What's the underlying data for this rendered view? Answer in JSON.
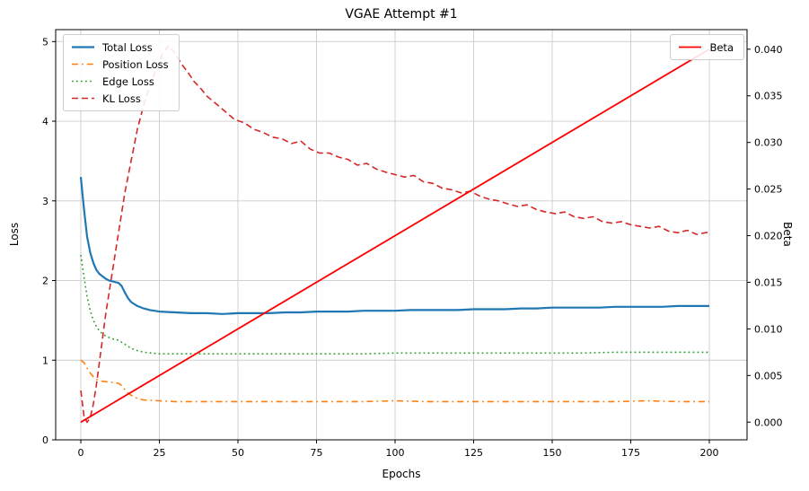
{
  "figure": {
    "title": "VGAE Attempt #1",
    "xlabel": "Epochs",
    "ylabel_left": "Loss",
    "ylabel_right": "Beta"
  },
  "chart_data": {
    "type": "line",
    "title": "VGAE Attempt #1",
    "xlabel": "Epochs",
    "ylabel": "Loss",
    "ylabel_right": "Beta",
    "grid": true,
    "xlim": [
      -8,
      212
    ],
    "ylim_left": [
      0,
      5.15
    ],
    "ylim_right": [
      -0.0019,
      0.0421
    ],
    "xticks": [
      0,
      25,
      50,
      75,
      100,
      125,
      150,
      175,
      200
    ],
    "yticks_left": [
      "0",
      "1",
      "2",
      "3",
      "4",
      "5"
    ],
    "yticks_right": [
      "0.000",
      "0.005",
      "0.010",
      "0.015",
      "0.020",
      "0.025",
      "0.030",
      "0.035",
      "0.040"
    ],
    "legends": [
      {
        "position": "top-left",
        "entries": [
          "Total Loss",
          "Position Loss",
          "Edge Loss",
          "KL Loss"
        ]
      },
      {
        "position": "top-right",
        "entries": [
          "Beta"
        ]
      }
    ],
    "series": [
      {
        "name": "Total Loss",
        "color": "#1f77b4",
        "style": "solid",
        "width": 2.2,
        "axis": "left",
        "x": [
          0,
          1,
          2,
          3,
          4,
          5,
          6,
          7,
          8,
          9,
          10,
          11,
          12,
          13,
          14,
          15,
          16,
          18,
          20,
          22,
          25,
          30,
          35,
          40,
          45,
          50,
          55,
          60,
          65,
          70,
          75,
          80,
          85,
          90,
          95,
          100,
          105,
          110,
          115,
          120,
          125,
          130,
          135,
          140,
          145,
          150,
          155,
          160,
          165,
          170,
          175,
          180,
          185,
          190,
          195,
          200
        ],
        "y": [
          3.3,
          2.9,
          2.55,
          2.35,
          2.22,
          2.13,
          2.08,
          2.05,
          2.02,
          2.0,
          1.99,
          1.98,
          1.97,
          1.93,
          1.85,
          1.78,
          1.73,
          1.68,
          1.65,
          1.63,
          1.61,
          1.6,
          1.59,
          1.59,
          1.58,
          1.59,
          1.59,
          1.59,
          1.6,
          1.6,
          1.61,
          1.61,
          1.61,
          1.62,
          1.62,
          1.62,
          1.63,
          1.63,
          1.63,
          1.63,
          1.64,
          1.64,
          1.64,
          1.65,
          1.65,
          1.66,
          1.66,
          1.66,
          1.66,
          1.67,
          1.67,
          1.67,
          1.67,
          1.68,
          1.68,
          1.68
        ]
      },
      {
        "name": "Position Loss",
        "color": "#ff7f0e",
        "style": "dashdot",
        "width": 1.6,
        "axis": "left",
        "x": [
          0,
          1,
          2,
          3,
          4,
          5,
          6,
          8,
          10,
          12,
          13,
          14,
          15,
          16,
          18,
          20,
          25,
          30,
          40,
          50,
          60,
          70,
          80,
          90,
          100,
          110,
          120,
          130,
          140,
          150,
          160,
          170,
          180,
          190,
          200
        ],
        "y": [
          1.0,
          0.97,
          0.9,
          0.84,
          0.79,
          0.76,
          0.74,
          0.73,
          0.72,
          0.71,
          0.68,
          0.63,
          0.59,
          0.56,
          0.52,
          0.5,
          0.49,
          0.48,
          0.48,
          0.48,
          0.48,
          0.48,
          0.48,
          0.48,
          0.49,
          0.48,
          0.48,
          0.48,
          0.48,
          0.48,
          0.48,
          0.48,
          0.49,
          0.48,
          0.48
        ]
      },
      {
        "name": "Edge Loss",
        "color": "#2ca02c",
        "style": "dotted",
        "width": 1.6,
        "axis": "left",
        "x": [
          0,
          1,
          2,
          3,
          4,
          5,
          6,
          8,
          10,
          12,
          14,
          16,
          18,
          20,
          25,
          30,
          40,
          50,
          60,
          70,
          80,
          90,
          100,
          110,
          120,
          130,
          140,
          150,
          160,
          170,
          180,
          190,
          200
        ],
        "y": [
          2.32,
          2.05,
          1.8,
          1.62,
          1.5,
          1.42,
          1.36,
          1.3,
          1.27,
          1.25,
          1.2,
          1.15,
          1.12,
          1.1,
          1.08,
          1.08,
          1.08,
          1.08,
          1.08,
          1.08,
          1.08,
          1.08,
          1.09,
          1.09,
          1.09,
          1.09,
          1.09,
          1.09,
          1.09,
          1.1,
          1.1,
          1.1,
          1.1
        ]
      },
      {
        "name": "KL Loss",
        "color": "#d62728",
        "style": "dashed",
        "width": 1.6,
        "axis": "left",
        "x": [
          0,
          1,
          2,
          3,
          4,
          5,
          6,
          7,
          8,
          10,
          12,
          14,
          16,
          18,
          20,
          22,
          24,
          26,
          28,
          30,
          32,
          34,
          36,
          38,
          40,
          43,
          46,
          49,
          52,
          55,
          58,
          61,
          64,
          67,
          70,
          73,
          76,
          79,
          82,
          85,
          88,
          91,
          94,
          97,
          100,
          103,
          106,
          109,
          112,
          115,
          118,
          121,
          124,
          127,
          130,
          133,
          136,
          139,
          142,
          145,
          148,
          151,
          154,
          157,
          160,
          163,
          166,
          169,
          172,
          175,
          178,
          181,
          184,
          187,
          190,
          193,
          196,
          200
        ],
        "y": [
          0.62,
          0.3,
          0.22,
          0.28,
          0.45,
          0.7,
          1.0,
          1.3,
          1.6,
          2.1,
          2.6,
          3.1,
          3.5,
          3.9,
          4.2,
          4.45,
          4.65,
          4.85,
          4.95,
          4.85,
          4.72,
          4.62,
          4.5,
          4.42,
          4.32,
          4.22,
          4.12,
          4.02,
          3.98,
          3.9,
          3.86,
          3.8,
          3.78,
          3.72,
          3.75,
          3.65,
          3.6,
          3.6,
          3.55,
          3.52,
          3.45,
          3.47,
          3.4,
          3.36,
          3.33,
          3.3,
          3.32,
          3.24,
          3.22,
          3.16,
          3.14,
          3.1,
          3.12,
          3.06,
          3.02,
          3.0,
          2.96,
          2.93,
          2.95,
          2.89,
          2.86,
          2.84,
          2.86,
          2.8,
          2.78,
          2.8,
          2.74,
          2.72,
          2.74,
          2.7,
          2.68,
          2.66,
          2.68,
          2.62,
          2.6,
          2.63,
          2.58,
          2.61
        ]
      },
      {
        "name": "Beta",
        "color": "#ff0000",
        "style": "solid",
        "width": 1.8,
        "axis": "right",
        "x": [
          0,
          200
        ],
        "y": [
          0.0,
          0.04
        ]
      }
    ]
  }
}
